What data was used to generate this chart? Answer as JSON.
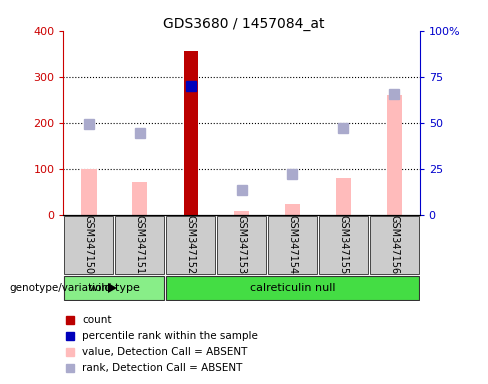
{
  "title": "GDS3680 / 1457084_at",
  "samples": [
    "GSM347150",
    "GSM347151",
    "GSM347152",
    "GSM347153",
    "GSM347154",
    "GSM347155",
    "GSM347156"
  ],
  "count_values": [
    0,
    0,
    355,
    0,
    0,
    0,
    0
  ],
  "count_absent_values": [
    100,
    72,
    0,
    8,
    25,
    80,
    260
  ],
  "rank_absent_points": [
    198,
    178,
    0,
    55,
    90,
    188,
    262
  ],
  "percentile_rank_point": [
    null,
    null,
    280,
    null,
    null,
    null,
    null
  ],
  "ylim_left": [
    0,
    400
  ],
  "ylim_right": [
    0,
    100
  ],
  "yticks_left": [
    0,
    100,
    200,
    300,
    400
  ],
  "yticks_right": [
    0,
    25,
    50,
    75,
    100
  ],
  "yticklabels_right": [
    "0",
    "25",
    "50",
    "75",
    "100%"
  ],
  "groups": [
    {
      "label": "wild type",
      "indices": [
        0,
        1
      ],
      "color": "#88EE88"
    },
    {
      "label": "calreticulin null",
      "indices": [
        2,
        3,
        4,
        5,
        6
      ],
      "color": "#44DD44"
    }
  ],
  "color_count": "#BB0000",
  "color_count_absent": "#FFBBBB",
  "color_rank_absent": "#AAAACC",
  "color_percentile": "#0000BB",
  "group_label": "genotype/variation",
  "legend_items": [
    {
      "label": "count",
      "color": "#BB0000"
    },
    {
      "label": "percentile rank within the sample",
      "color": "#0000BB"
    },
    {
      "label": "value, Detection Call = ABSENT",
      "color": "#FFBBBB"
    },
    {
      "label": "rank, Detection Call = ABSENT",
      "color": "#AAAACC"
    }
  ],
  "dotted_lines": [
    100,
    200,
    300
  ],
  "left_axis_color": "#CC0000",
  "right_axis_color": "#0000CC"
}
